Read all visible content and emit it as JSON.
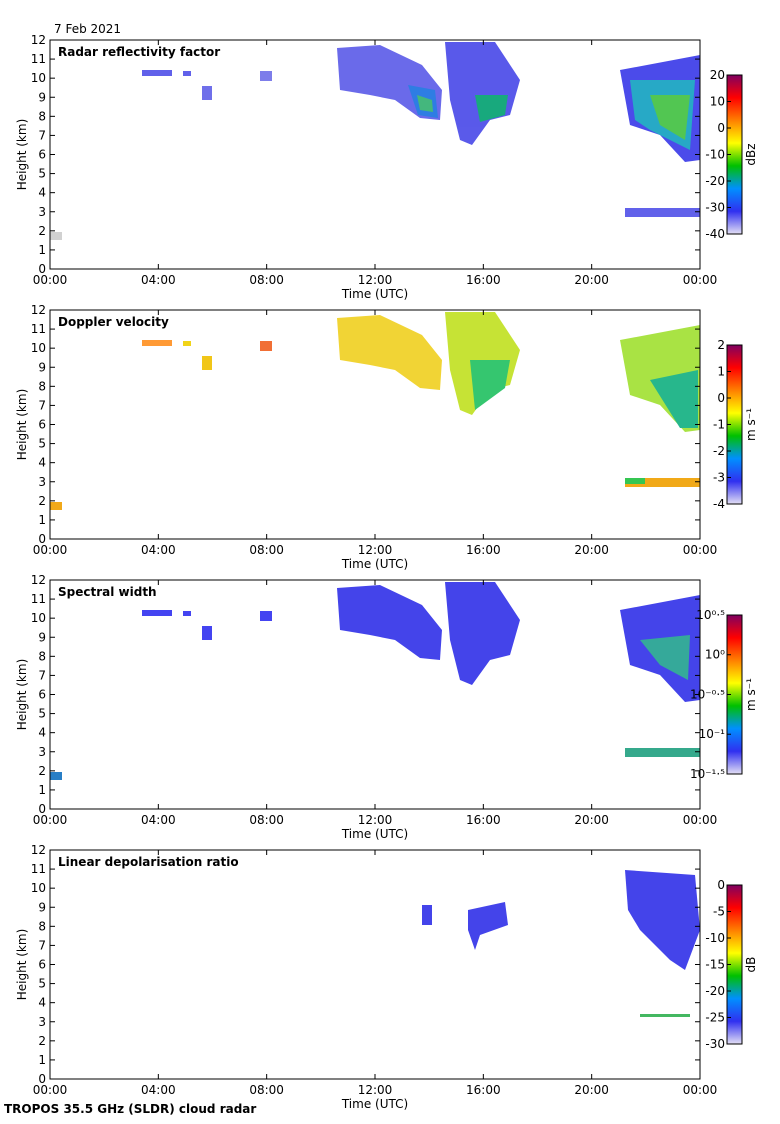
{
  "date": "7 Feb 2021",
  "footer": "TROPOS 35.5 GHz (SLDR) cloud radar",
  "chart_data": [
    {
      "type": "heatmap",
      "title": "Radar reflectivity factor",
      "xlabel": "Time (UTC)",
      "ylabel": "Height (km)",
      "xlim": [
        0,
        24
      ],
      "xticks": [
        {
          "value": 0,
          "label": "00:00"
        },
        {
          "value": 4,
          "label": "04:00"
        },
        {
          "value": 8,
          "label": "08:00"
        },
        {
          "value": 12,
          "label": "12:00"
        },
        {
          "value": 16,
          "label": "16:00"
        },
        {
          "value": 20,
          "label": "20:00"
        },
        {
          "value": 24,
          "label": "00:00"
        }
      ],
      "ylim": [
        0,
        12
      ],
      "yticks": [
        0,
        1,
        2,
        3,
        4,
        5,
        6,
        7,
        8,
        9,
        10,
        11,
        12
      ],
      "colorbar": {
        "label": "dBz",
        "lim": [
          -40,
          20
        ],
        "ticks": [
          -40,
          -30,
          -20,
          -10,
          0,
          10,
          20
        ],
        "log": false,
        "colors": [
          "#e4e0f4",
          "#3030f0",
          "#0090ff",
          "#00c000",
          "#ffff00",
          "#ff8000",
          "#ff0000",
          "#800060"
        ]
      }
    },
    {
      "type": "heatmap",
      "title": "Doppler velocity",
      "xlabel": "Time (UTC)",
      "ylabel": "Height (km)",
      "xlim": [
        0,
        24
      ],
      "xticks": [
        {
          "value": 0,
          "label": "00:00"
        },
        {
          "value": 4,
          "label": "04:00"
        },
        {
          "value": 8,
          "label": "08:00"
        },
        {
          "value": 12,
          "label": "12:00"
        },
        {
          "value": 16,
          "label": "16:00"
        },
        {
          "value": 20,
          "label": "20:00"
        },
        {
          "value": 24,
          "label": "00:00"
        }
      ],
      "ylim": [
        0,
        12
      ],
      "yticks": [
        0,
        1,
        2,
        3,
        4,
        5,
        6,
        7,
        8,
        9,
        10,
        11,
        12
      ],
      "colorbar": {
        "label": "m s⁻¹",
        "lim": [
          -4,
          2
        ],
        "ticks": [
          -4,
          -3,
          -2,
          -1,
          0,
          1,
          2
        ],
        "log": false,
        "colors": [
          "#e4e0f4",
          "#3030f0",
          "#0090ff",
          "#00c000",
          "#ffff00",
          "#ff8000",
          "#ff0000",
          "#800060"
        ]
      }
    },
    {
      "type": "heatmap",
      "title": "Spectral width",
      "xlabel": "Time (UTC)",
      "ylabel": "Height (km)",
      "xlim": [
        0,
        24
      ],
      "xticks": [
        {
          "value": 0,
          "label": "00:00"
        },
        {
          "value": 4,
          "label": "04:00"
        },
        {
          "value": 8,
          "label": "08:00"
        },
        {
          "value": 12,
          "label": "12:00"
        },
        {
          "value": 16,
          "label": "16:00"
        },
        {
          "value": 20,
          "label": "20:00"
        },
        {
          "value": 24,
          "label": "00:00"
        }
      ],
      "ylim": [
        0,
        12
      ],
      "yticks": [
        0,
        1,
        2,
        3,
        4,
        5,
        6,
        7,
        8,
        9,
        10,
        11,
        12
      ],
      "colorbar": {
        "label": "m s⁻¹",
        "lim": [
          0.0316,
          3.162
        ],
        "log": true,
        "ticks": [
          {
            "value": 0.0316,
            "label": "10⁻¹·⁵"
          },
          {
            "value": 0.1,
            "label": "10⁻¹"
          },
          {
            "value": 0.316,
            "label": "10⁻⁰·⁵"
          },
          {
            "value": 1,
            "label": "10⁰"
          },
          {
            "value": 3.162,
            "label": "10⁰·⁵"
          }
        ],
        "colors": [
          "#e4e0f4",
          "#3030f0",
          "#0090ff",
          "#00c000",
          "#ffff00",
          "#ff8000",
          "#ff0000",
          "#800060"
        ]
      }
    },
    {
      "type": "heatmap",
      "title": "Linear depolarisation ratio",
      "xlabel": "Time (UTC)",
      "ylabel": "Height (km)",
      "xlim": [
        0,
        24
      ],
      "xticks": [
        {
          "value": 0,
          "label": "00:00"
        },
        {
          "value": 4,
          "label": "04:00"
        },
        {
          "value": 8,
          "label": "08:00"
        },
        {
          "value": 12,
          "label": "12:00"
        },
        {
          "value": 16,
          "label": "16:00"
        },
        {
          "value": 20,
          "label": "20:00"
        },
        {
          "value": 24,
          "label": "00:00"
        }
      ],
      "ylim": [
        0,
        12
      ],
      "yticks": [
        0,
        1,
        2,
        3,
        4,
        5,
        6,
        7,
        8,
        9,
        10,
        11,
        12
      ],
      "colorbar": {
        "label": "dB",
        "lim": [
          -30,
          0
        ],
        "ticks": [
          -30,
          -25,
          -20,
          -15,
          -10,
          -5,
          0
        ],
        "log": false,
        "colors": [
          "#e4e0f4",
          "#3030f0",
          "#0090ff",
          "#00c000",
          "#ffff00",
          "#ff8000",
          "#ff0000",
          "#800060"
        ]
      }
    }
  ]
}
